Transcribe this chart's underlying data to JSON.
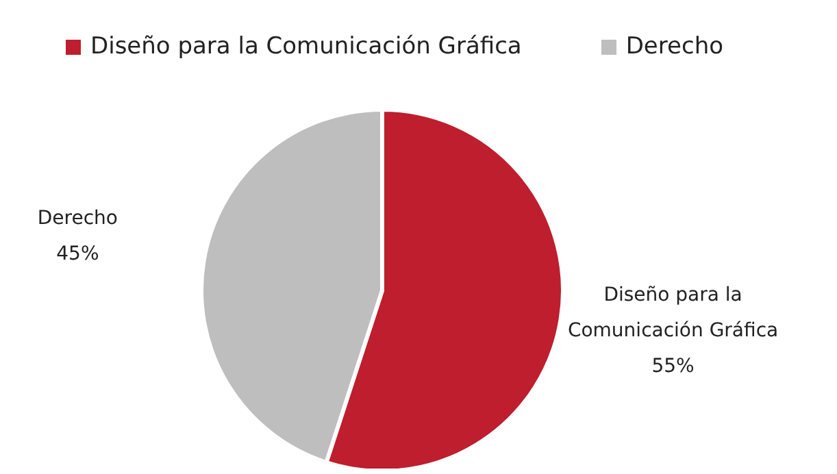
{
  "chart_data": {
    "type": "pie",
    "categories": [
      "Diseño para la Comunicación Gráfica",
      "Derecho"
    ],
    "values": [
      55,
      45
    ],
    "colors": [
      "#be1e2d",
      "#bdbebd"
    ],
    "value_labels": [
      "55%",
      "45%"
    ],
    "legend": "top left"
  }
}
